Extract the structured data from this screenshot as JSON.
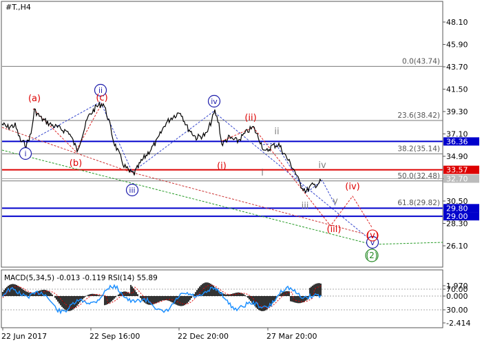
{
  "chart_title": "#T.,H4",
  "colors": {
    "frame": "#555555",
    "price_line": "#000000",
    "level_line": "#777777",
    "blue_level": "#0000cc",
    "red_level": "#dd0000",
    "gray_level_fill": "#bbbbbb",
    "wave_blue": "#1a1aaa",
    "wave_red": "#dd0000",
    "wave_gray": "#808080",
    "wave_green": "#228822",
    "macd_hist": "#000000",
    "rsi_line": "#1e90ff",
    "macd_signal": "#dd0000"
  },
  "price_axis": {
    "ticks": [
      {
        "label": "48.10",
        "value": 48.1
      },
      {
        "label": "45.90",
        "value": 45.9
      },
      {
        "label": "43.70",
        "value": 43.7
      },
      {
        "label": "41.50",
        "value": 41.5
      },
      {
        "label": "39.30",
        "value": 39.3
      },
      {
        "label": "37.10",
        "value": 37.1
      },
      {
        "label": "34.90",
        "value": 34.9
      },
      {
        "label": "32.70",
        "value": 32.7
      },
      {
        "label": "30.50",
        "value": 30.5
      },
      {
        "label": "28.30",
        "value": 28.3
      },
      {
        "label": "26.10",
        "value": 26.1
      }
    ]
  },
  "fib_levels": [
    {
      "label": "0.0(43.74)",
      "value": 43.74
    },
    {
      "label": "23.6(38.42)",
      "value": 38.42
    },
    {
      "label": "38.2(35.14)",
      "value": 35.14
    },
    {
      "label": "50.0(32.48)",
      "value": 32.48
    },
    {
      "label": "61.8(29.82)",
      "value": 29.82
    }
  ],
  "blue_levels": [
    {
      "label": "36.36",
      "value": 36.36
    },
    {
      "label": "29.80",
      "value": 29.8
    },
    {
      "label": "29.00",
      "value": 29.0
    }
  ],
  "red_levels": [
    {
      "label": "33.57",
      "value": 33.57
    }
  ],
  "current_price": {
    "label": "32.70",
    "value": 32.7
  },
  "x_axis_labels": [
    "22 Jun 2017",
    "22 Sep 16:00",
    "22 Dec 20:00",
    "27 Mar 20:00"
  ],
  "wave_labels": {
    "blue_circled": [
      "i",
      "ii",
      "iii",
      "iv",
      "v"
    ],
    "red": [
      "(a)",
      "(b)",
      "(c)",
      "(i)",
      "(ii)",
      "(iii)",
      "(iv)",
      "(v)"
    ],
    "gray": [
      "i",
      "ii",
      "iii",
      "iv",
      "v"
    ],
    "green": [
      "(2)"
    ]
  },
  "indicator_panel": {
    "header": "MACD(5,34,5) -0.013 -0.119 RSI(14) 55.89",
    "ticks": [
      "1.970",
      "70.00",
      "0.000",
      "30.00",
      "-2.414"
    ]
  }
}
